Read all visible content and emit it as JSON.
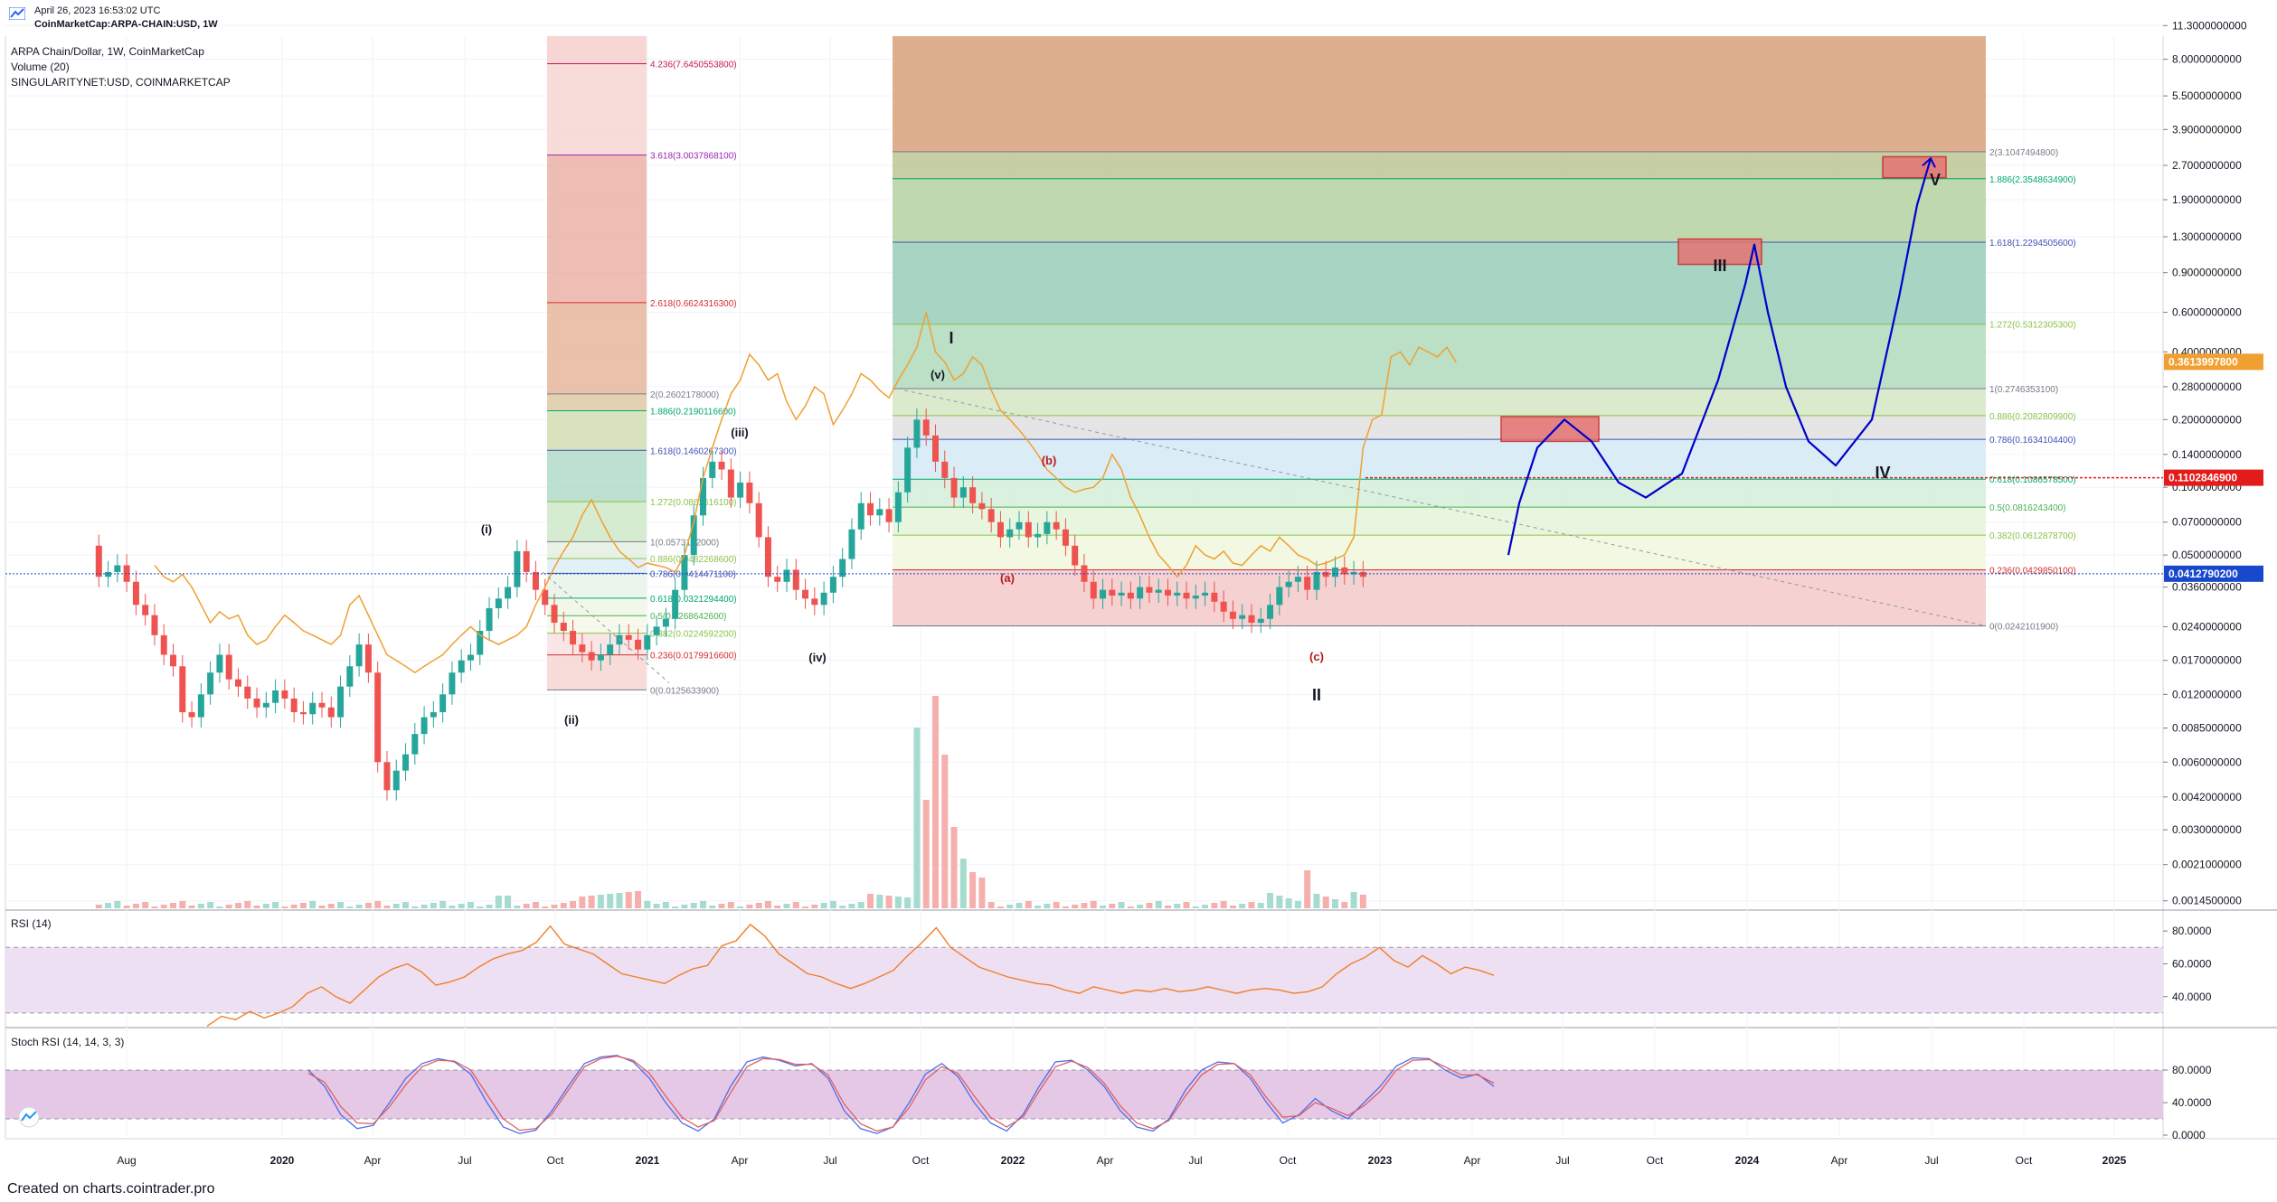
{
  "header": {
    "timestamp": "April 26, 2023 16:53:02 UTC",
    "symbol": "CoinMarketCap:ARPA-CHAIN:USD, 1W"
  },
  "legend": {
    "main": "ARPA Chain/Dollar, 1W, CoinMarketCap",
    "volume": "Volume (20)",
    "overlay": "SINGULARITYNET:USD, COINMARKETCAP"
  },
  "footer": "Created on charts.cointrader.pro",
  "colors": {
    "up": "#26a69a",
    "down": "#ef5350",
    "overlay": "#f0a030",
    "projection": "#0000cc",
    "rsi": "#f07f2a",
    "stoch_k": "#4d6ee8",
    "stoch_d": "#e06060"
  },
  "chart_data": [
    {
      "type": "line",
      "title": "",
      "scale": "log",
      "x_ticks": [
        "Aug",
        "2020",
        "Apr",
        "Jul",
        "Oct",
        "2021",
        "Apr",
        "Jul",
        "Oct",
        "2022",
        "Apr",
        "Jul",
        "Oct",
        "2023",
        "Apr",
        "Jul",
        "Oct",
        "2024",
        "Apr",
        "Jul",
        "Oct",
        "2025"
      ],
      "y_ticks": [
        "11.3000000000",
        "8.0000000000",
        "5.5000000000",
        "3.9000000000",
        "2.7000000000",
        "1.9000000000",
        "1.3000000000",
        "0.9000000000",
        "0.6000000000",
        "0.4000000000",
        "0.2800000000",
        "0.2000000000",
        "0.1400000000",
        "0.1000000000",
        "0.0700000000",
        "0.0500000000",
        "0.0360000000",
        "0.0240000000",
        "0.0170000000",
        "0.0120000000",
        "0.0085000000",
        "0.0060000000",
        "0.0042000000",
        "0.0030000000",
        "0.0021000000",
        "0.0014500000"
      ],
      "price_labels": [
        {
          "value": "0.3613997800",
          "color": "#f0a030"
        },
        {
          "value": "0.1102846900",
          "color": "#e31b1b"
        },
        {
          "value": "0.0412790200",
          "color": "#1848cc"
        }
      ],
      "fib_left": [
        {
          "label": "4.236(7.6450553800)",
          "color": "#c2185b"
        },
        {
          "label": "3.618(3.0037868100)",
          "color": "#9c27b0"
        },
        {
          "label": "2.618(0.6624316300)",
          "color": "#d32f2f"
        },
        {
          "label": "2(0.2602178000)",
          "color": "#787b86"
        },
        {
          "label": "1.886(0.2190116600)",
          "color": "#00a86b"
        },
        {
          "label": "1.618(0.1460267300)",
          "color": "#3f51b5"
        },
        {
          "label": "1.272(0.0862616100)",
          "color": "#8bc34a"
        },
        {
          "label": "1(0.0573152000)",
          "color": "#787b86"
        },
        {
          "label": "0.886(0.0482268600)",
          "color": "#8bc34a"
        },
        {
          "label": "0.786(0.0414471100)",
          "color": "#3f51b5"
        },
        {
          "label": "0.618(0.0321294400)",
          "color": "#00a86b"
        },
        {
          "label": "0.5(0.0268642600)",
          "color": "#4caf50"
        },
        {
          "label": "0.382(0.0224592200)",
          "color": "#8bc34a"
        },
        {
          "label": "0.236(0.0179916600)",
          "color": "#d32f2f"
        },
        {
          "label": "0(0.0125633900)",
          "color": "#787b86"
        }
      ],
      "fib_right": [
        {
          "label": "2(3.1047494800)",
          "color": "#787b86"
        },
        {
          "label": "1.886(2.3548634900)",
          "color": "#00a86b"
        },
        {
          "label": "1.618(1.2294505600)",
          "color": "#3f51b5"
        },
        {
          "label": "1.272(0.5312305300)",
          "color": "#8bc34a"
        },
        {
          "label": "1(0.2746353100)",
          "color": "#787b86"
        },
        {
          "label": "0.886(0.2082809900)",
          "color": "#8bc34a"
        },
        {
          "label": "0.786(0.1634104400)",
          "color": "#3f51b5"
        },
        {
          "label": "0.618(0.1086578500)",
          "color": "#00a86b"
        },
        {
          "label": "0.5(0.0816243400)",
          "color": "#4caf50"
        },
        {
          "label": "0.382(0.0612878700)",
          "color": "#8bc34a"
        },
        {
          "label": "0.236(0.0429850100)",
          "color": "#d32f2f"
        },
        {
          "label": "0(0.0242101900)",
          "color": "#787b86"
        }
      ],
      "wave_labels": [
        {
          "text": "(i)",
          "color": "#131722"
        },
        {
          "text": "(ii)",
          "color": "#131722"
        },
        {
          "text": "(iii)",
          "color": "#131722"
        },
        {
          "text": "(iv)",
          "color": "#131722"
        },
        {
          "text": "(v)",
          "color": "#131722"
        },
        {
          "text": "I",
          "color": "#131722"
        },
        {
          "text": "(a)",
          "color": "#b71c1c"
        },
        {
          "text": "(b)",
          "color": "#b71c1c"
        },
        {
          "text": "(c)",
          "color": "#b71c1c"
        },
        {
          "text": "II",
          "color": "#131722"
        },
        {
          "text": "III",
          "color": "#131722"
        },
        {
          "text": "IV",
          "color": "#131722"
        },
        {
          "text": "V",
          "color": "#131722"
        }
      ]
    },
    {
      "type": "line",
      "title": "RSI (14)",
      "y_ticks": [
        "80.0000",
        "60.0000",
        "40.0000"
      ],
      "values": [
        22,
        28,
        26,
        31,
        27,
        30,
        34,
        42,
        46,
        40,
        36,
        44,
        52,
        57,
        60,
        55,
        47,
        49,
        52,
        58,
        63,
        66,
        68,
        73,
        83,
        72,
        69,
        66,
        60,
        54,
        52,
        50,
        48,
        53,
        57,
        59,
        71,
        74,
        84,
        77,
        66,
        60,
        54,
        52,
        48,
        45,
        48,
        52,
        56,
        65,
        73,
        82,
        70,
        64,
        58,
        55,
        52,
        50,
        48,
        47,
        44,
        42,
        46,
        44,
        42,
        44,
        43,
        45,
        43,
        44,
        46,
        44,
        42,
        44,
        45,
        44,
        42,
        43,
        46,
        54,
        60,
        64,
        70,
        62,
        58,
        65,
        60,
        54,
        58,
        56,
        53
      ]
    },
    {
      "type": "line",
      "title": "Stoch RSI (14, 14, 3, 3)",
      "y_ticks": [
        "80.0000",
        "40.0000",
        "0.0000"
      ],
      "series": [
        {
          "values": [
            80,
            60,
            25,
            8,
            12,
            40,
            70,
            88,
            94,
            90,
            75,
            40,
            10,
            2,
            6,
            30,
            60,
            88,
            96,
            98,
            90,
            70,
            40,
            15,
            5,
            20,
            60,
            90,
            96,
            92,
            85,
            88,
            70,
            30,
            8,
            2,
            10,
            40,
            75,
            88,
            72,
            40,
            15,
            5,
            25,
            60,
            90,
            92,
            80,
            60,
            30,
            10,
            5,
            20,
            55,
            80,
            90,
            88,
            70,
            40,
            15,
            25,
            45,
            30,
            20,
            40,
            60,
            85,
            95,
            94,
            80,
            70,
            75,
            60
          ]
        },
        {
          "values": [
            76,
            65,
            35,
            15,
            14,
            35,
            62,
            84,
            92,
            91,
            80,
            50,
            20,
            6,
            8,
            26,
            55,
            84,
            94,
            97,
            92,
            76,
            48,
            22,
            10,
            18,
            52,
            84,
            94,
            93,
            87,
            87,
            74,
            38,
            14,
            5,
            10,
            34,
            68,
            84,
            76,
            48,
            22,
            10,
            22,
            54,
            84,
            91,
            83,
            64,
            36,
            15,
            8,
            18,
            48,
            74,
            87,
            88,
            74,
            46,
            22,
            24,
            40,
            33,
            24,
            36,
            54,
            80,
            92,
            93,
            84,
            74,
            74,
            64
          ]
        }
      ]
    }
  ]
}
